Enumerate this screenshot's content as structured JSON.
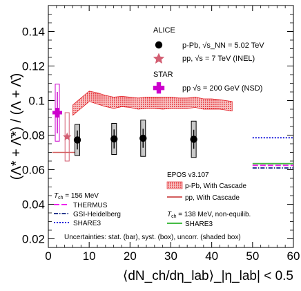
{
  "chart_data": {
    "type": "scatter",
    "xlabel": "⟨dN_ch/dη_lab⟩_|η_lab| < 0.5",
    "ylabel": "(Λ* + Λ̄*) / (Λ + Λ̄)",
    "xlim": [
      0,
      60
    ],
    "ylim": [
      0.015,
      0.155
    ],
    "xticks": [
      0,
      10,
      20,
      30,
      40,
      50,
      60
    ],
    "yticks": [
      0.02,
      0.04,
      0.06,
      0.08,
      0.1,
      0.12,
      0.14
    ],
    "colors": {
      "alice": "#000000",
      "star_pp": "#d35e72",
      "star_auau": "#cc00cc",
      "epos_band": "#e3242b",
      "epos_pp": "#d35e5e",
      "thermus": "#ee22ee",
      "gsi": "#2a3b8f",
      "share3": "#1a1adb",
      "share3_noneq": "#44bb44"
    },
    "series": [
      {
        "name": "p-Pb, √s_NN = 5.02 TeV",
        "group": "ALICE",
        "marker": "circle",
        "x": [
          7.1,
          16.1,
          23.2,
          35.6
        ],
        "y": [
          0.0772,
          0.0778,
          0.0782,
          0.0776
        ],
        "stat_err": [
          0.0055,
          0.0055,
          0.0055,
          0.0055
        ],
        "sys_err": [
          0.009,
          0.009,
          0.0105,
          0.0105
        ]
      },
      {
        "name": "pp, √s = 7 TeV (INEL)",
        "group": "ALICE",
        "marker": "star",
        "x": [
          4.6
        ],
        "y": [
          0.079
        ],
        "sys_err": [
          0.014
        ]
      },
      {
        "name": "pp √s = 200 GeV (NSD)",
        "group": "STAR",
        "marker": "cross",
        "x": [
          2.2
        ],
        "y": [
          0.093
        ],
        "stat_err": [
          0.012
        ],
        "sys_err": [
          0.0165
        ]
      },
      {
        "name": "p-Pb, With Cascade",
        "group": "EPOS v3.107",
        "style": "band",
        "x": [
          6,
          8,
          10,
          12,
          14,
          16,
          18,
          20,
          22,
          24,
          26,
          28,
          30,
          32,
          34,
          36,
          38,
          40,
          42,
          45
        ],
        "y_low": [
          0.0915,
          0.0955,
          0.0995,
          0.098,
          0.0965,
          0.0955,
          0.0965,
          0.096,
          0.095,
          0.0955,
          0.0955,
          0.095,
          0.0955,
          0.0955,
          0.0955,
          0.096,
          0.095,
          0.095,
          0.095,
          0.094
        ],
        "y_high": [
          0.0975,
          0.1015,
          0.1055,
          0.1045,
          0.103,
          0.102,
          0.1025,
          0.102,
          0.1015,
          0.102,
          0.102,
          0.102,
          0.102,
          0.1015,
          0.1015,
          0.102,
          0.101,
          0.101,
          0.1005,
          0.0995
        ]
      },
      {
        "name": "pp, With Cascade",
        "group": "EPOS v3.107",
        "style": "line",
        "x": [
          1,
          7
        ],
        "y": [
          0.07,
          0.07
        ]
      },
      {
        "name": "THERMUS",
        "group": "T_ch = 156 MeV",
        "style": "long-dash",
        "x": [
          50,
          60
        ],
        "y": [
          0.0625,
          0.0625
        ]
      },
      {
        "name": "GSI-Heidelberg",
        "group": "T_ch = 156 MeV",
        "style": "dash-dot",
        "x": [
          50,
          60
        ],
        "y": [
          0.061,
          0.061
        ]
      },
      {
        "name": "SHARE3",
        "group": "T_ch = 156 MeV",
        "style": "dotted",
        "x": [
          50,
          60
        ],
        "y": [
          0.0785,
          0.0785
        ]
      },
      {
        "name": "SHARE3",
        "group": "T_ch = 138 MeV, non-equilib.",
        "style": "solid",
        "x": [
          50,
          60
        ],
        "y": [
          0.0635,
          0.0635
        ]
      }
    ],
    "legend": {
      "alice_header": "ALICE",
      "star_header": "STAR",
      "epos_header": "EPOS v3.107",
      "tch156_prefix": "T",
      "tch156_sub": "ch",
      "tch156_value": " = 156 MeV",
      "tch138_prefix": "T",
      "tch138_sub": "ch",
      "tch138_value": " = 138 MeV, non-equilib.",
      "footnote": "Uncertainties: stat. (bar), syst. (box), uncorr. (shaded box)"
    }
  }
}
